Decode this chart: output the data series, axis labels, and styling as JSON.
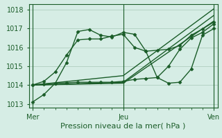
{
  "title": "Pression niveau de la mer( hPa )",
  "bg_color": "#d6ede5",
  "grid_color": "#a8c8b8",
  "line_color": "#1a5c28",
  "x_ticks_labels": [
    "Mer",
    "Jeu",
    "Ven"
  ],
  "x_ticks_pos": [
    0,
    48,
    96
  ],
  "xlim": [
    -2,
    98
  ],
  "ylim": [
    1012.8,
    1018.3
  ],
  "yticks": [
    1013,
    1014,
    1015,
    1016,
    1017,
    1018
  ],
  "lines": [
    {
      "x": [
        0,
        6,
        12,
        18,
        24,
        30,
        36,
        42,
        48,
        54,
        60,
        66,
        72,
        78,
        84,
        90,
        96
      ],
      "y": [
        1013.1,
        1013.5,
        1014.1,
        1015.2,
        1016.85,
        1016.95,
        1016.65,
        1016.55,
        1016.8,
        1016.7,
        1015.8,
        1015.85,
        1015.9,
        1016.1,
        1016.65,
        1016.98,
        1017.35
      ],
      "marker": "D",
      "ms": 2.5,
      "lw": 1.0
    },
    {
      "x": [
        0,
        48,
        96
      ],
      "y": [
        1014.0,
        1014.1,
        1017.4
      ],
      "marker": null,
      "lw": 1.0
    },
    {
      "x": [
        0,
        48,
        96
      ],
      "y": [
        1014.0,
        1014.15,
        1017.7
      ],
      "marker": null,
      "lw": 1.0
    },
    {
      "x": [
        0,
        48,
        96
      ],
      "y": [
        1014.0,
        1014.5,
        1018.05
      ],
      "marker": null,
      "lw": 1.0
    },
    {
      "x": [
        0,
        6,
        12,
        18,
        24,
        30,
        36,
        42,
        48,
        54,
        60,
        66,
        72,
        78,
        84,
        90,
        96
      ],
      "y": [
        1014.0,
        1014.2,
        1014.7,
        1015.6,
        1016.4,
        1016.45,
        1016.45,
        1016.6,
        1016.7,
        1016.0,
        1015.8,
        1014.4,
        1014.1,
        1014.15,
        1014.85,
        1016.65,
        1017.0
      ],
      "marker": "D",
      "ms": 2.5,
      "lw": 1.0
    },
    {
      "x": [
        0,
        6,
        12,
        18,
        24,
        30,
        36,
        42,
        48,
        54,
        60,
        66,
        72,
        78,
        84,
        90,
        96
      ],
      "y": [
        1014.0,
        1014.05,
        1014.1,
        1014.12,
        1014.15,
        1014.15,
        1014.15,
        1014.15,
        1014.2,
        1014.3,
        1014.35,
        1014.4,
        1015.0,
        1015.9,
        1016.5,
        1016.8,
        1017.25
      ],
      "marker": "D",
      "ms": 2.5,
      "lw": 1.0
    }
  ],
  "vlines_x": [
    0,
    48,
    96
  ],
  "fontsize_title": 8.0,
  "fontsize_ticks": 7.0
}
